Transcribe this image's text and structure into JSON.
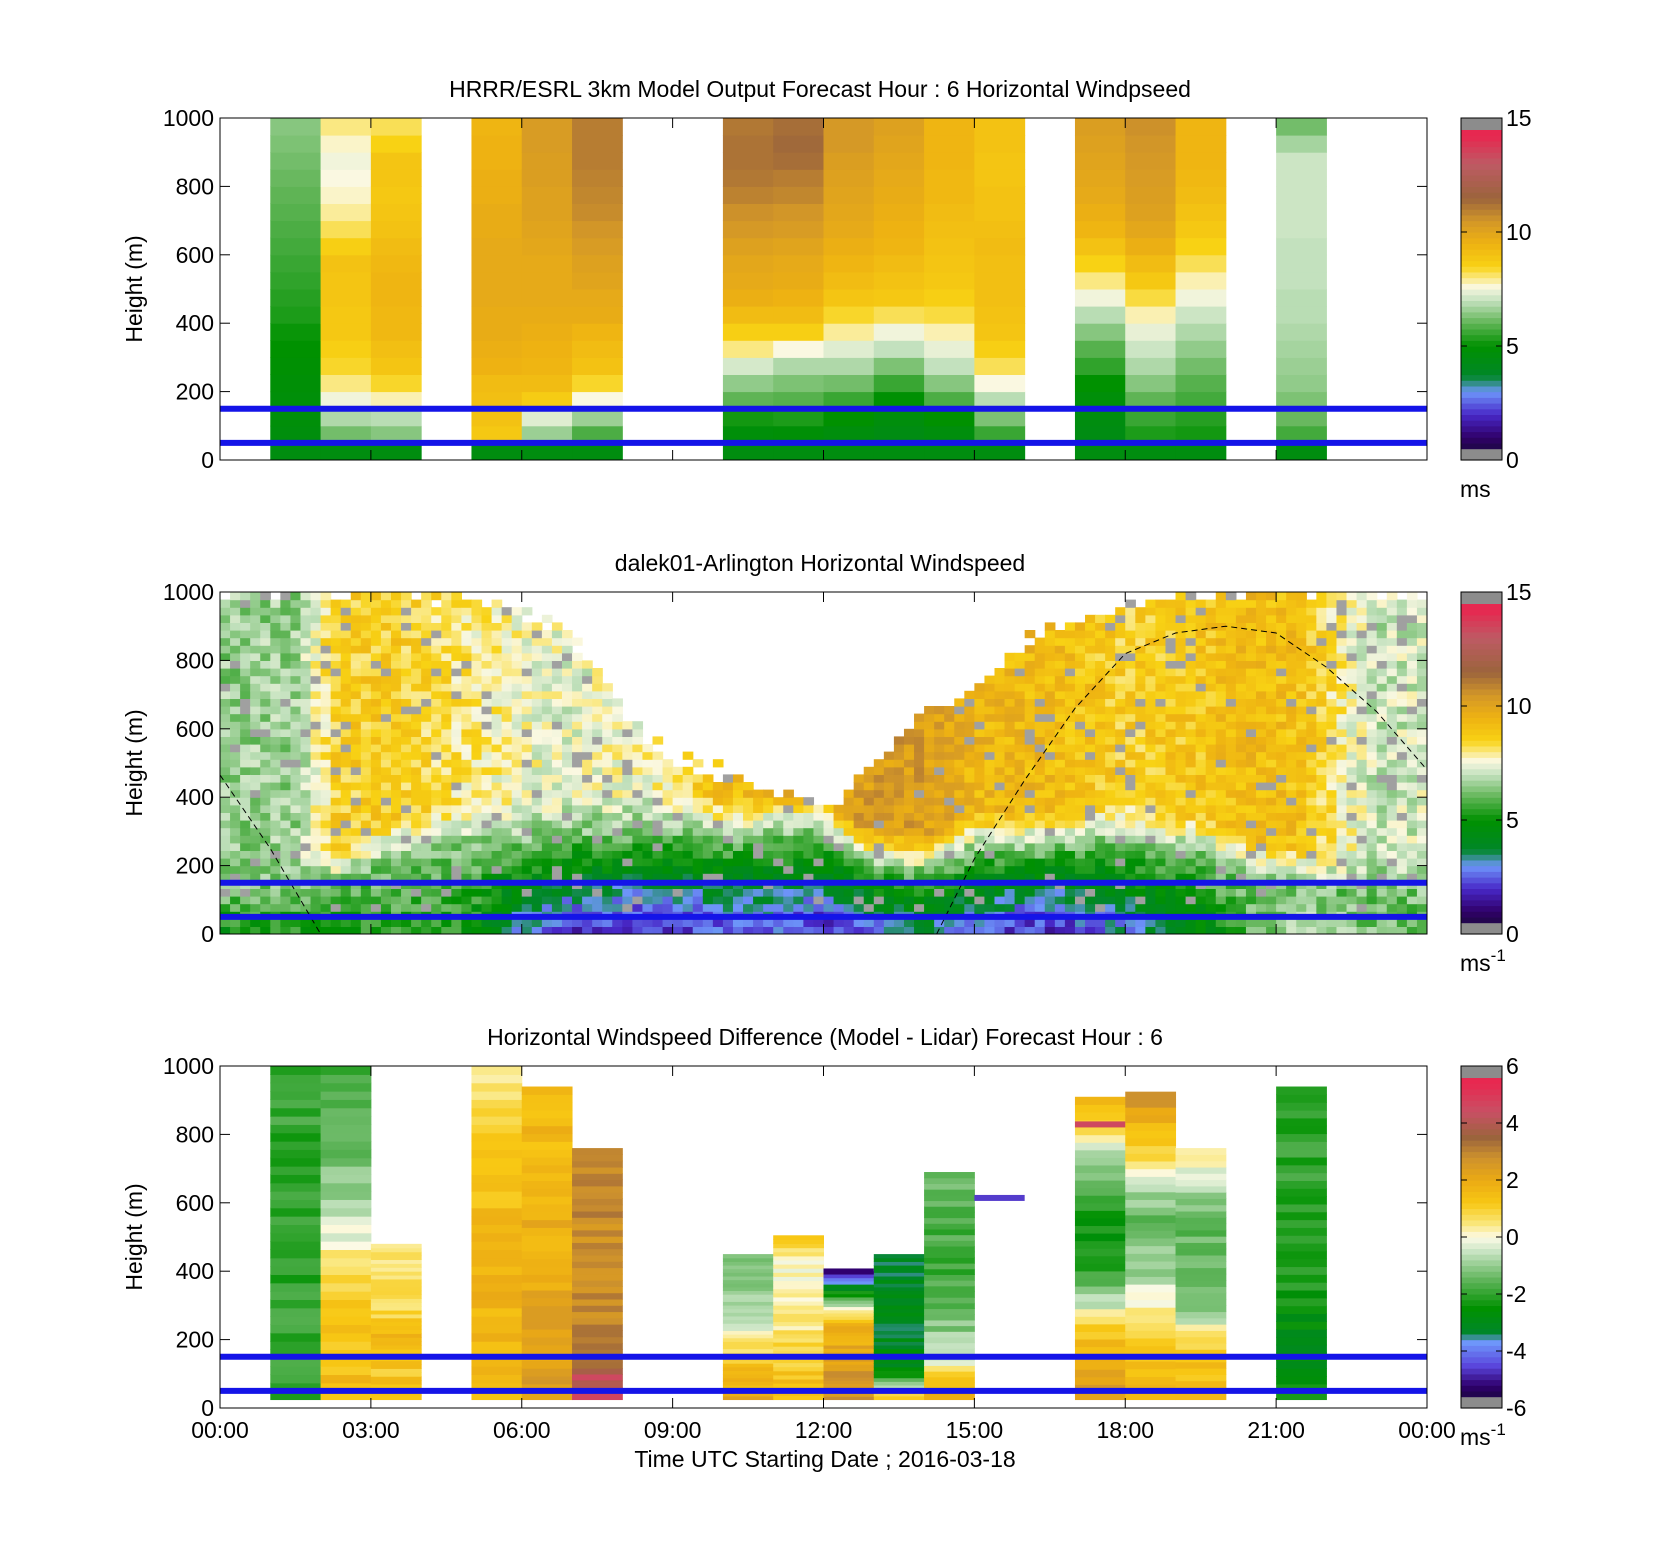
{
  "figure": {
    "xlabel": "Time UTC  Starting Date ; 2016-03-18",
    "xticks": [
      "00:00",
      "03:00",
      "06:00",
      "09:00",
      "12:00",
      "15:00",
      "18:00",
      "21:00",
      "00:00"
    ]
  },
  "chart_data": [
    {
      "type": "heatmap",
      "id": "model",
      "title": "HRRR/ESRL 3km Model Output   Forecast Hour : 6 Horizontal Windpseed",
      "ylabel": "Height (m)",
      "yticks": [
        "0",
        "200",
        "400",
        "600",
        "800",
        "1000"
      ],
      "ylim": [
        0,
        1000
      ],
      "xlim": [
        0,
        24
      ],
      "colorbar": {
        "min": 0,
        "max": 15,
        "ticks": [
          "0",
          "5",
          "10",
          "15"
        ],
        "unit": "ms",
        "unit_sup": ""
      },
      "reference_heights": [
        50,
        150
      ],
      "columns_hours": [
        1.5,
        2.5,
        3.5,
        5.5,
        6.5,
        7.5,
        10.5,
        11.5,
        12.5,
        13.5,
        14.5,
        15.5,
        17.5,
        18.5,
        19.5,
        21.5
      ],
      "height_levels": [
        25,
        75,
        125,
        175,
        225,
        275,
        325,
        375,
        425,
        475,
        525,
        575,
        625,
        675,
        725,
        775,
        825,
        875,
        925,
        975
      ],
      "values": [
        [
          4.5,
          4.6,
          4.7,
          4.7,
          4.8,
          4.9,
          5.0,
          5.1,
          5.3,
          5.4,
          5.5,
          5.6,
          5.7,
          5.8,
          5.9,
          6.0,
          6.1,
          6.2,
          6.3,
          6.4
        ],
        [
          4.5,
          6.2,
          6.8,
          7.5,
          8.0,
          8.4,
          8.6,
          8.8,
          8.8,
          8.9,
          8.9,
          9.0,
          8.6,
          8.2,
          7.9,
          7.7,
          7.6,
          7.5,
          7.7,
          8.0
        ],
        [
          4.5,
          6.4,
          6.9,
          7.8,
          8.4,
          8.9,
          9.1,
          9.3,
          9.3,
          9.4,
          9.4,
          9.3,
          9.2,
          9.0,
          8.9,
          8.8,
          8.9,
          8.9,
          8.5,
          8.2
        ],
        [
          4.5,
          8.8,
          9.0,
          9.1,
          9.2,
          9.5,
          9.6,
          9.7,
          9.7,
          9.8,
          9.8,
          9.8,
          9.8,
          9.7,
          9.7,
          9.6,
          9.6,
          9.5,
          9.5,
          9.4
        ],
        [
          4.5,
          6.6,
          7.3,
          8.7,
          9.2,
          9.4,
          9.5,
          9.6,
          9.7,
          9.8,
          9.8,
          9.8,
          9.9,
          10.0,
          10.1,
          10.1,
          10.2,
          10.2,
          10.3,
          10.3
        ],
        [
          4.5,
          5.8,
          6.6,
          7.6,
          8.4,
          9.0,
          9.2,
          9.4,
          9.7,
          9.8,
          10.0,
          10.1,
          10.3,
          10.5,
          10.7,
          10.8,
          10.9,
          11.0,
          11.0,
          11.0
        ],
        [
          4.5,
          4.7,
          5.2,
          6.0,
          6.5,
          7.2,
          8.0,
          8.6,
          9.2,
          9.6,
          9.8,
          9.9,
          10.1,
          10.4,
          10.6,
          10.9,
          11.1,
          11.2,
          11.2,
          11.1
        ],
        [
          4.5,
          4.8,
          5.3,
          5.9,
          6.3,
          6.8,
          7.6,
          8.6,
          9.2,
          9.5,
          9.7,
          9.8,
          10.0,
          10.3,
          10.5,
          10.8,
          11.0,
          11.3,
          11.4,
          11.3
        ],
        [
          4.5,
          4.6,
          5.0,
          5.6,
          6.2,
          6.8,
          7.3,
          7.9,
          8.4,
          8.9,
          9.2,
          9.4,
          9.6,
          9.8,
          9.9,
          10.0,
          10.1,
          10.2,
          10.4,
          10.4
        ],
        [
          4.5,
          4.4,
          4.6,
          4.9,
          5.6,
          6.3,
          7.0,
          7.5,
          8.2,
          8.8,
          9.0,
          9.2,
          9.4,
          9.5,
          9.6,
          9.7,
          9.8,
          9.9,
          10.0,
          10.1
        ],
        [
          4.5,
          4.6,
          5.0,
          5.8,
          6.4,
          7.0,
          7.4,
          7.8,
          8.3,
          8.6,
          8.8,
          8.9,
          9.0,
          9.1,
          9.2,
          9.3,
          9.3,
          9.4,
          9.4,
          9.4
        ],
        [
          4.5,
          5.6,
          6.3,
          6.9,
          7.6,
          8.2,
          8.6,
          8.9,
          9.0,
          9.1,
          9.1,
          9.1,
          9.2,
          9.1,
          9.0,
          9.0,
          8.9,
          8.9,
          9.0,
          9.0
        ],
        [
          4.5,
          4.4,
          4.5,
          4.7,
          5.0,
          5.5,
          5.9,
          6.4,
          6.9,
          7.5,
          8.0,
          8.5,
          9.0,
          9.4,
          9.6,
          9.8,
          9.9,
          10.0,
          10.1,
          10.2
        ],
        [
          4.5,
          5.3,
          5.6,
          6.0,
          6.4,
          6.8,
          7.1,
          7.4,
          7.8,
          8.3,
          8.8,
          9.2,
          9.6,
          9.9,
          10.1,
          10.2,
          10.3,
          10.4,
          10.5,
          10.6
        ],
        [
          4.5,
          5.2,
          5.4,
          5.7,
          5.9,
          6.2,
          6.5,
          6.8,
          7.1,
          7.5,
          7.8,
          8.2,
          8.5,
          8.8,
          9.0,
          9.2,
          9.3,
          9.4,
          9.4,
          9.4
        ],
        [
          4.5,
          5.7,
          6.1,
          6.3,
          6.5,
          6.6,
          6.7,
          6.8,
          6.9,
          6.9,
          7.0,
          7.0,
          7.0,
          7.1,
          7.1,
          7.1,
          7.1,
          7.1,
          6.7,
          6.2
        ]
      ]
    },
    {
      "type": "heatmap",
      "id": "lidar",
      "title": "dalek01-Arlington  Horizontal Windspeed",
      "ylabel": "Height (m)",
      "yticks": [
        "0",
        "200",
        "400",
        "600",
        "800",
        "1000"
      ],
      "ylim": [
        0,
        1000
      ],
      "xlim": [
        0,
        24
      ],
      "colorbar": {
        "min": 0,
        "max": 15,
        "ticks": [
          "0",
          "5",
          "10",
          "15"
        ],
        "unit": "ms",
        "unit_sup": "-1"
      },
      "reference_heights": [
        50,
        150
      ],
      "keyframes_hours": [
        0.0,
        1.5,
        2.3,
        3.5,
        5.0,
        6.0,
        7.0,
        8.5,
        10.0,
        11.0,
        12.0,
        12.8,
        14.0,
        15.0,
        16.5,
        18.0,
        19.5,
        20.5,
        21.5,
        23.0,
        24.0
      ],
      "keyframes_top_m": [
        1000,
        1000,
        1000,
        1000,
        980,
        950,
        880,
        560,
        470,
        420,
        370,
        470,
        640,
        720,
        900,
        960,
        1000,
        1000,
        1000,
        1000,
        1000
      ],
      "keyframes_bl_m": [
        120,
        130,
        140,
        220,
        250,
        260,
        280,
        300,
        270,
        290,
        290,
        200,
        180,
        240,
        250,
        270,
        230,
        170,
        140,
        110,
        110
      ],
      "keyframes_surface_mps": [
        5.0,
        5.2,
        5.2,
        5.5,
        5.2,
        3.0,
        2.0,
        2.0,
        2.3,
        2.5,
        1.8,
        2.5,
        3.5,
        2.5,
        1.8,
        3.0,
        4.5,
        6.0,
        6.8,
        6.2,
        5.8
      ],
      "keyframes_upper_mps": [
        6.5,
        6.6,
        8.6,
        8.7,
        8.0,
        7.6,
        7.4,
        7.7,
        9.0,
        9.4,
        9.6,
        10.3,
        10.2,
        9.4,
        9.2,
        8.6,
        8.9,
        9.2,
        9.0,
        7.0,
        7.2
      ],
      "dashed_curve_m": {
        "hours": [
          0.0,
          1.0,
          2.0,
          3.0,
          4.0,
          5.0,
          6.0,
          7.0,
          8.0,
          9.0,
          10.0,
          11.0,
          12.0,
          13.0,
          14.0,
          14.25,
          15.0,
          16.0,
          17.0,
          18.0,
          19.0,
          20.0,
          21.0,
          22.0,
          23.0,
          24.0
        ],
        "heights": [
          465,
          250,
          0,
          null,
          null,
          null,
          null,
          null,
          null,
          null,
          null,
          null,
          null,
          null,
          null,
          0,
          220,
          450,
          660,
          820,
          880,
          900,
          880,
          780,
          650,
          480
        ]
      }
    },
    {
      "type": "heatmap",
      "id": "difference",
      "title": "Horizontal Windspeed Difference (Model - Lidar) Forecast Hour : 6",
      "ylabel": "Height (m)",
      "yticks": [
        "0",
        "200",
        "400",
        "600",
        "800",
        "1000"
      ],
      "ylim": [
        0,
        1000
      ],
      "xlim": [
        0,
        24
      ],
      "colorbar": {
        "min": -6,
        "max": 6,
        "ticks": [
          "-6",
          "-4",
          "-2",
          "0",
          "2",
          "4",
          "6"
        ],
        "unit": "ms",
        "unit_sup": "-1"
      },
      "reference_heights": [
        50,
        150
      ],
      "column_tops_m": [
        1000,
        1000,
        480,
        1000,
        940,
        760,
        450,
        505,
        400,
        450,
        690,
        910,
        925,
        760,
        940
      ],
      "columns_hours": [
        1.5,
        2.5,
        3.5,
        5.5,
        6.5,
        7.5,
        10.5,
        11.5,
        12.5,
        13.5,
        14.5,
        17.5,
        18.5,
        19.5,
        21.5
      ],
      "column_profiles": [
        [
          -1.8,
          -1.9,
          -2.0,
          -1.9,
          -2.0,
          -1.8
        ],
        [
          1.5,
          1.4,
          0.5,
          -0.8,
          -1.6,
          -2.0
        ],
        [
          1.4,
          1.2,
          1.6,
          0.6,
          0.6,
          0.4
        ],
        [
          1.5,
          1.6,
          1.8,
          1.4,
          1.2,
          0.5
        ],
        [
          2.5,
          2.2,
          2.0,
          1.8,
          1.6,
          1.6
        ],
        [
          4.5,
          3.0,
          2.8,
          2.8,
          2.9,
          2.8
        ],
        [
          2.0,
          1.5,
          0.5,
          -0.8,
          -1.2,
          -1.0
        ],
        [
          1.6,
          1.2,
          0.6,
          0.3,
          0.0,
          1.2
        ],
        [
          2.8,
          2.6,
          2.0,
          1.8,
          -2.0,
          -4.8
        ],
        [
          1.2,
          -2.8,
          -3.0,
          -3.1,
          -3.2,
          -3.0
        ],
        [
          2.4,
          -0.5,
          -1.5,
          -2.0,
          -1.6,
          -1.4
        ],
        [
          2.6,
          1.6,
          -2.0,
          -2.5,
          -0.6,
          2.0
        ],
        [
          1.4,
          1.2,
          -0.8,
          -1.5,
          0.8,
          3.0
        ],
        [
          1.5,
          1.2,
          -1.5,
          -1.5,
          -1.2,
          0.6
        ],
        [
          -2.6,
          -2.8,
          -2.2,
          -2.0,
          -2.0,
          -2.0
        ]
      ],
      "accent_bands": [
        {
          "hour": 12.5,
          "height_m": 400,
          "value": -5.2
        },
        {
          "hour": 15.5,
          "height_m": 615,
          "value": -4.6
        },
        {
          "hour": 17.5,
          "height_m": 830,
          "value": 4.6
        },
        {
          "hour": 7.5,
          "height_m": 90,
          "value": 4.6
        }
      ]
    }
  ]
}
